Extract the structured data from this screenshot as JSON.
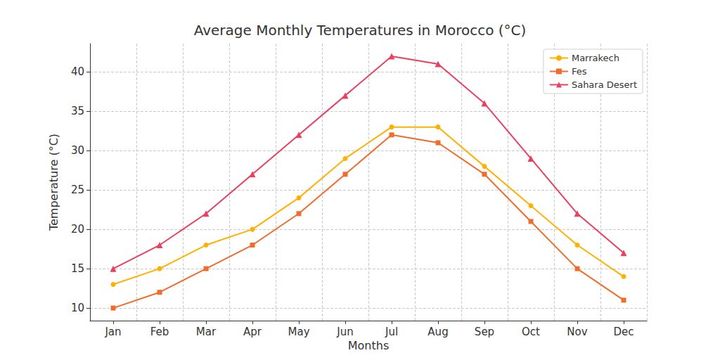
{
  "chart_data": {
    "type": "line",
    "title": "Average Monthly Temperatures in Morocco (°C)",
    "x_label": "Months",
    "y_label": "Temperature (°C)",
    "categories": [
      "Jan",
      "Feb",
      "Mar",
      "Apr",
      "May",
      "Jun",
      "Jul",
      "Aug",
      "Sep",
      "Oct",
      "Nov",
      "Dec"
    ],
    "series": [
      {
        "name": "Marrakech",
        "color": "#FFB000",
        "marker": "circle",
        "values": [
          13,
          15,
          18,
          20,
          24,
          29,
          33,
          33,
          28,
          23,
          18,
          14
        ]
      },
      {
        "name": "Fes",
        "color": "#EF6C2B",
        "marker": "square",
        "values": [
          10,
          12,
          15,
          18,
          22,
          27,
          32,
          31,
          27,
          21,
          15,
          11
        ]
      },
      {
        "name": "Sahara Desert",
        "color": "#E8415F",
        "marker": "triangle",
        "values": [
          15,
          18,
          22,
          27,
          32,
          37,
          42,
          41,
          36,
          29,
          22,
          17
        ]
      }
    ],
    "ylim": [
      8.4,
      43.6
    ],
    "yticks": [
      10,
      15,
      20,
      25,
      30,
      35,
      40
    ],
    "grid": true,
    "legend": "upper right"
  }
}
